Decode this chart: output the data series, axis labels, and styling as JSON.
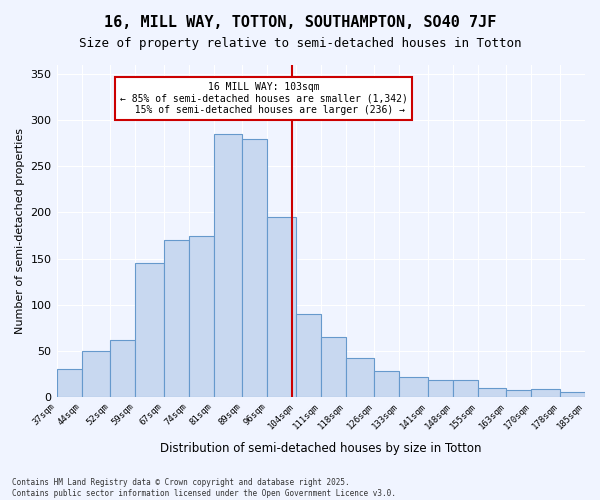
{
  "title": "16, MILL WAY, TOTTON, SOUTHAMPTON, SO40 7JF",
  "subtitle": "Size of property relative to semi-detached houses in Totton",
  "xlabel": "Distribution of semi-detached houses by size in Totton",
  "ylabel": "Number of semi-detached properties",
  "footnote": "Contains HM Land Registry data © Crown copyright and database right 2025.\nContains public sector information licensed under the Open Government Licence v3.0.",
  "property_size": 103,
  "property_label": "16 MILL WAY: 103sqm",
  "pct_smaller": 85,
  "count_smaller": 1342,
  "pct_larger": 15,
  "count_larger": 236,
  "bar_color": "#c8d8f0",
  "bar_edge_color": "#6699cc",
  "vline_color": "#cc0000",
  "annotation_box_color": "#cc0000",
  "background_color": "#f0f4ff",
  "grid_color": "#ffffff",
  "bin_edges": [
    37,
    44,
    52,
    59,
    67,
    74,
    81,
    89,
    96,
    104,
    111,
    118,
    126,
    133,
    141,
    148,
    155,
    163,
    170,
    178,
    185
  ],
  "counts": [
    30,
    50,
    62,
    145,
    170,
    175,
    285,
    280,
    195,
    90,
    65,
    42,
    28,
    22,
    18,
    18,
    10,
    7,
    8,
    5
  ],
  "tick_labels": [
    "37sqm",
    "44sqm",
    "52sqm",
    "59sqm",
    "67sqm",
    "74sqm",
    "81sqm",
    "89sqm",
    "96sqm",
    "104sqm",
    "111sqm",
    "118sqm",
    "126sqm",
    "133sqm",
    "141sqm",
    "148sqm",
    "155sqm",
    "163sqm",
    "170sqm",
    "178sqm",
    "185sqm"
  ],
  "ylim": [
    0,
    360
  ],
  "yticks": [
    0,
    50,
    100,
    150,
    200,
    250,
    300,
    350
  ]
}
